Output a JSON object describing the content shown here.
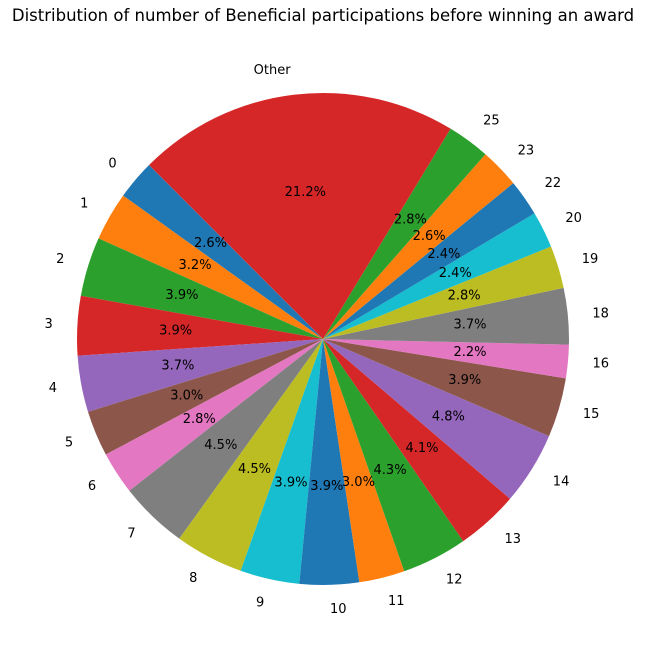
{
  "chart_data": {
    "type": "pie",
    "title": "Distribution of number of Beneficial participations before winning an award",
    "start_angle_deg": 135,
    "direction": "counterclockwise",
    "slices": [
      {
        "label": "0",
        "value": 2.6,
        "pct_text": "2.6%",
        "color": "#1f77b4"
      },
      {
        "label": "1",
        "value": 3.2,
        "pct_text": "3.2%",
        "color": "#ff7f0e"
      },
      {
        "label": "2",
        "value": 3.9,
        "pct_text": "3.9%",
        "color": "#2ca02c"
      },
      {
        "label": "3",
        "value": 3.9,
        "pct_text": "3.9%",
        "color": "#d62728"
      },
      {
        "label": "4",
        "value": 3.7,
        "pct_text": "3.7%",
        "color": "#9467bd"
      },
      {
        "label": "5",
        "value": 3.0,
        "pct_text": "3.0%",
        "color": "#8c564b"
      },
      {
        "label": "6",
        "value": 2.8,
        "pct_text": "2.8%",
        "color": "#e377c2"
      },
      {
        "label": "7",
        "value": 4.5,
        "pct_text": "4.5%",
        "color": "#7f7f7f"
      },
      {
        "label": "8",
        "value": 4.5,
        "pct_text": "4.5%",
        "color": "#bcbd22"
      },
      {
        "label": "9",
        "value": 3.9,
        "pct_text": "3.9%",
        "color": "#17becf"
      },
      {
        "label": "10",
        "value": 3.9,
        "pct_text": "3.9%",
        "color": "#1f77b4"
      },
      {
        "label": "11",
        "value": 3.0,
        "pct_text": "3.0%",
        "color": "#ff7f0e"
      },
      {
        "label": "12",
        "value": 4.3,
        "pct_text": "4.3%",
        "color": "#2ca02c"
      },
      {
        "label": "13",
        "value": 4.1,
        "pct_text": "4.1%",
        "color": "#d62728"
      },
      {
        "label": "14",
        "value": 4.8,
        "pct_text": "4.8%",
        "color": "#9467bd"
      },
      {
        "label": "15",
        "value": 3.9,
        "pct_text": "3.9%",
        "color": "#8c564b"
      },
      {
        "label": "16",
        "value": 2.2,
        "pct_text": "2.2%",
        "color": "#e377c2"
      },
      {
        "label": "18",
        "value": 3.7,
        "pct_text": "3.7%",
        "color": "#7f7f7f"
      },
      {
        "label": "19",
        "value": 2.8,
        "pct_text": "2.8%",
        "color": "#bcbd22"
      },
      {
        "label": "20",
        "value": 2.4,
        "pct_text": "2.4%",
        "color": "#17becf"
      },
      {
        "label": "22",
        "value": 2.4,
        "pct_text": "2.4%",
        "color": "#1f77b4"
      },
      {
        "label": "23",
        "value": 2.6,
        "pct_text": "2.6%",
        "color": "#ff7f0e"
      },
      {
        "label": "25",
        "value": 2.8,
        "pct_text": "2.8%",
        "color": "#2ca02c"
      },
      {
        "label": "Other",
        "value": 21.2,
        "pct_text": "21.2%",
        "color": "#d62728"
      }
    ]
  }
}
